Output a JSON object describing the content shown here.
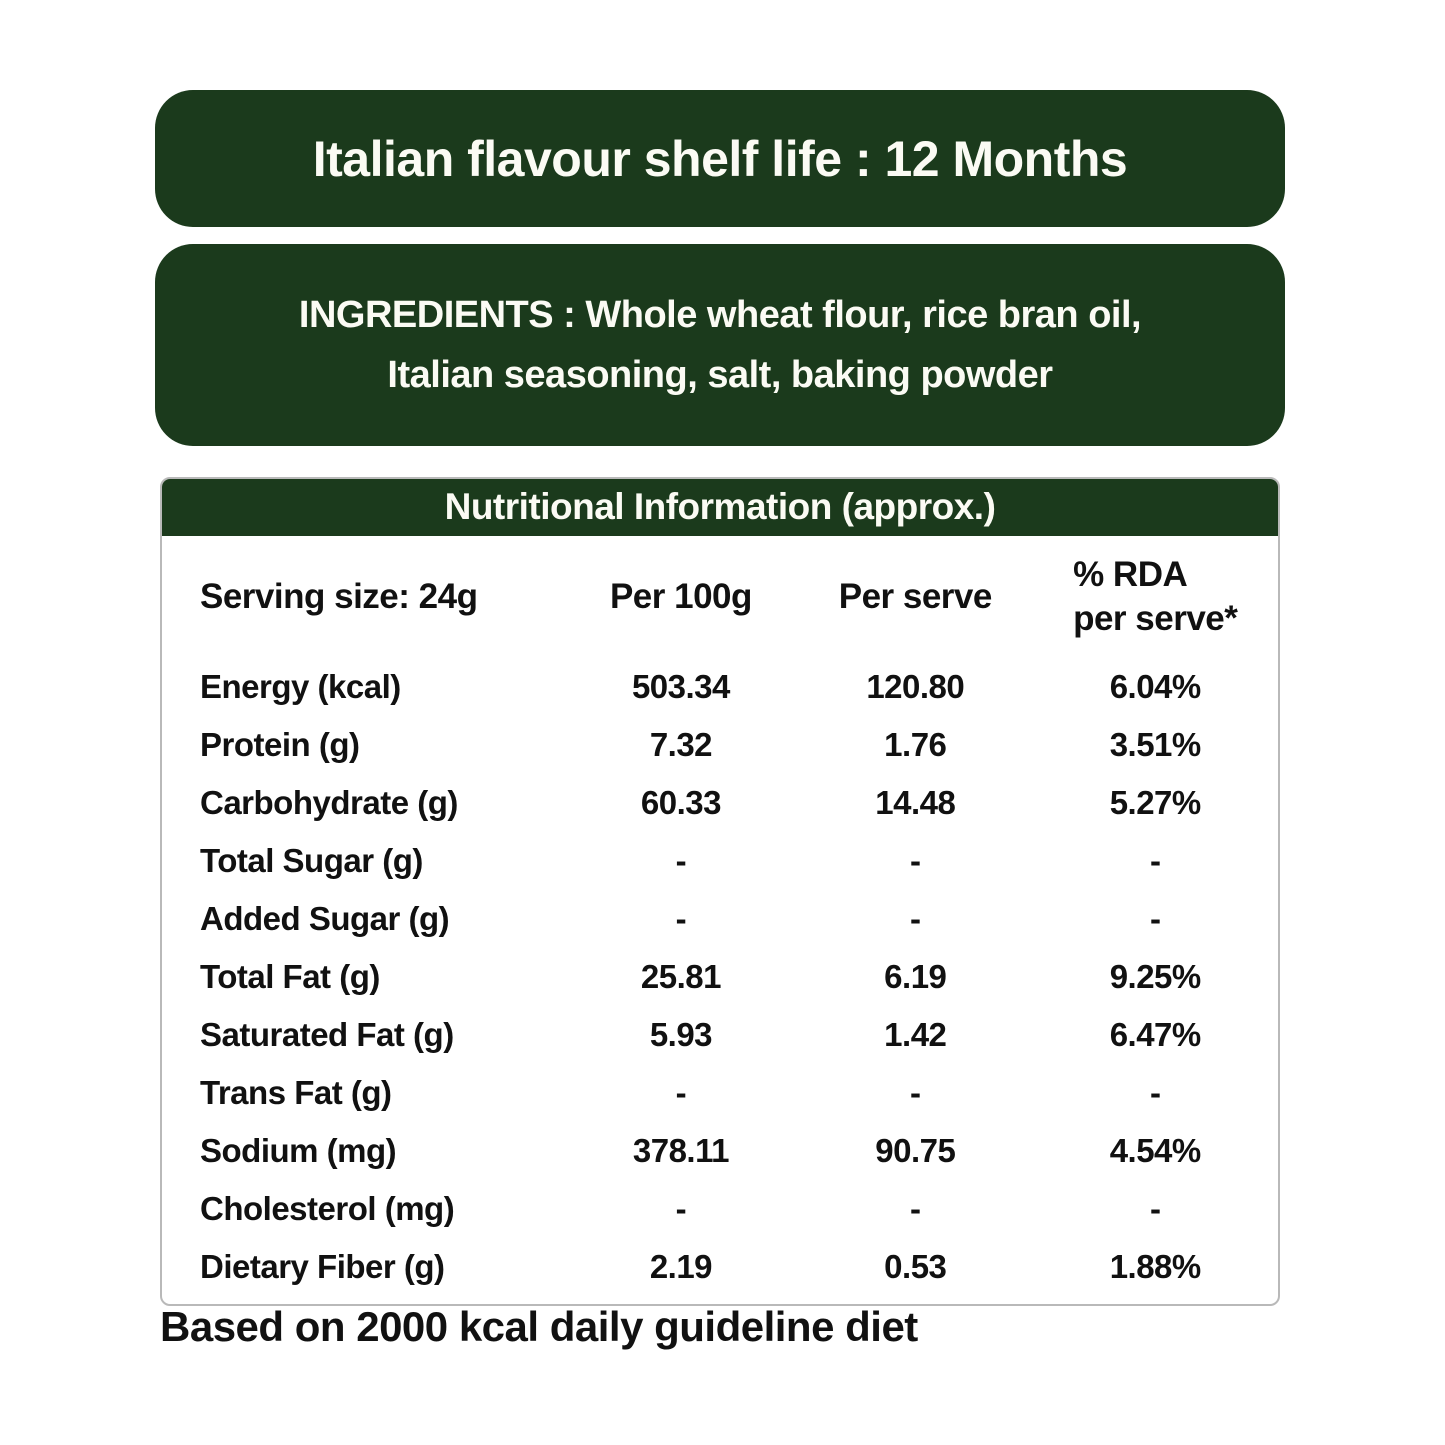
{
  "colors": {
    "brand_green": "#1b3a1c",
    "text_white": "#fbfbf4",
    "text_dark": "#111111",
    "table_border": "#b9b9b9"
  },
  "banner": {
    "title": "Italian flavour shelf life : 12 Months"
  },
  "ingredients": {
    "text": "INGREDIENTS : Whole wheat flour, rice bran oil, Italian seasoning, salt, baking powder"
  },
  "table": {
    "title": "Nutritional Information (approx.)",
    "columns": [
      "Serving size: 24g",
      "Per 100g",
      "Per serve",
      "% RDA per serve*"
    ],
    "serving_header": "Serving size: 24g",
    "per100_header": "Per 100g",
    "perserve_header": "Per serve",
    "rda_header_line1": "% RDA",
    "rda_header_line2": "per serve*",
    "rows": [
      {
        "nutrient": "Energy (kcal)",
        "per100": "503.34",
        "perServe": "120.80",
        "rda": "6.04%"
      },
      {
        "nutrient": "Protein (g)",
        "per100": "7.32",
        "perServe": "1.76",
        "rda": "3.51%"
      },
      {
        "nutrient": "Carbohydrate (g)",
        "per100": "60.33",
        "perServe": "14.48",
        "rda": "5.27%"
      },
      {
        "nutrient": "Total Sugar (g)",
        "per100": "-",
        "perServe": "-",
        "rda": "-"
      },
      {
        "nutrient": "Added Sugar (g)",
        "per100": "-",
        "perServe": "-",
        "rda": "-"
      },
      {
        "nutrient": "Total Fat (g)",
        "per100": "25.81",
        "perServe": "6.19",
        "rda": "9.25%"
      },
      {
        "nutrient": "Saturated Fat (g)",
        "per100": "5.93",
        "perServe": "1.42",
        "rda": "6.47%"
      },
      {
        "nutrient": "Trans Fat (g)",
        "per100": "-",
        "perServe": "-",
        "rda": "-"
      },
      {
        "nutrient": "Sodium (mg)",
        "per100": "378.11",
        "perServe": "90.75",
        "rda": "4.54%"
      },
      {
        "nutrient": "Cholesterol (mg)",
        "per100": "-",
        "perServe": "-",
        "rda": "-"
      },
      {
        "nutrient": "Dietary Fiber (g)",
        "per100": "2.19",
        "perServe": "0.53",
        "rda": "1.88%"
      }
    ]
  },
  "footer": {
    "note": "Based on 2000 kcal daily guideline diet"
  }
}
